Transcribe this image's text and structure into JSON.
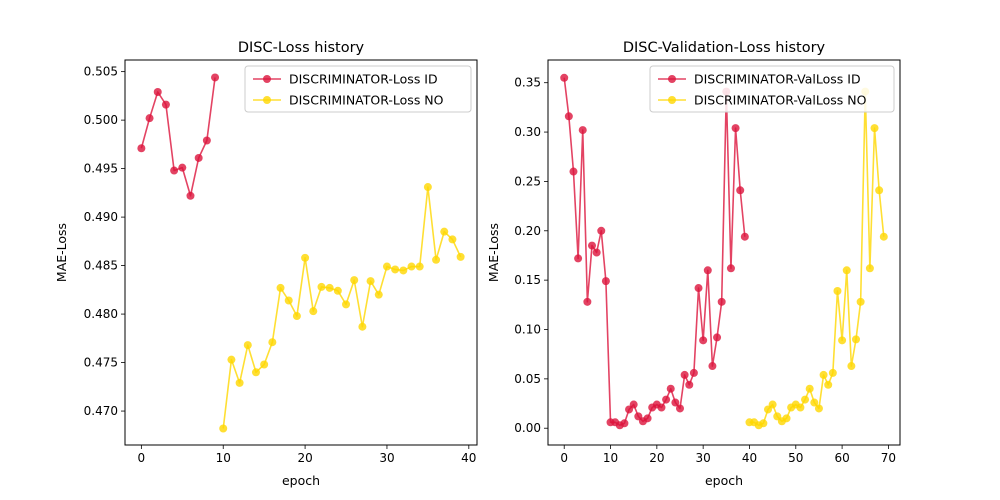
{
  "chart_data": [
    {
      "type": "line",
      "title": "DISC-Loss history",
      "xlabel": "epoch",
      "ylabel": "MAE-Loss",
      "xlim": [
        -2,
        41
      ],
      "ylim": [
        0.4665,
        0.5062
      ],
      "xticks": [
        0,
        10,
        20,
        30,
        40
      ],
      "yticks": [
        0.47,
        0.475,
        0.48,
        0.485,
        0.49,
        0.495,
        0.5,
        0.505
      ],
      "ytick_decimals": 3,
      "grid": false,
      "legend_position": "top-right",
      "series": [
        {
          "name": "DISCRIMINATOR-Loss ID",
          "color": "#dc143c",
          "x": [
            0,
            1,
            2,
            3,
            4,
            5,
            6,
            7,
            8,
            9
          ],
          "y": [
            0.4971,
            0.5002,
            0.5029,
            0.5016,
            0.4948,
            0.4951,
            0.4922,
            0.4961,
            0.4979,
            0.5044
          ]
        },
        {
          "name": "DISCRIMINATOR-Loss NO",
          "color": "#ffd700",
          "x": [
            10,
            11,
            12,
            13,
            14,
            15,
            16,
            17,
            18,
            19,
            20,
            21,
            22,
            23,
            24,
            25,
            26,
            27,
            28,
            29,
            30,
            31,
            32,
            33,
            34,
            35,
            36,
            37,
            38,
            39
          ],
          "y": [
            0.4682,
            0.4753,
            0.4729,
            0.4768,
            0.474,
            0.4748,
            0.4771,
            0.4827,
            0.4814,
            0.4798,
            0.4858,
            0.4803,
            0.4828,
            0.4827,
            0.4824,
            0.481,
            0.4835,
            0.4787,
            0.4834,
            0.482,
            0.4849,
            0.4846,
            0.4845,
            0.4849,
            0.4849,
            0.4931,
            0.4856,
            0.4885,
            0.4877,
            0.4859
          ]
        }
      ]
    },
    {
      "type": "line",
      "title": "DISC-Validation-Loss history",
      "xlabel": "epoch",
      "ylabel": "MAE-Loss",
      "xlim": [
        -3.5,
        72.5
      ],
      "ylim": [
        -0.017,
        0.373
      ],
      "xticks": [
        0,
        10,
        20,
        30,
        40,
        50,
        60,
        70
      ],
      "yticks": [
        0.0,
        0.05,
        0.1,
        0.15,
        0.2,
        0.25,
        0.3,
        0.35
      ],
      "ytick_decimals": 2,
      "grid": false,
      "legend_position": "top-right",
      "series": [
        {
          "name": "DISCRIMINATOR-ValLoss ID",
          "color": "#dc143c",
          "x": [
            0,
            1,
            2,
            3,
            4,
            5,
            6,
            7,
            8,
            9,
            10,
            11,
            12,
            13,
            14,
            15,
            16,
            17,
            18,
            19,
            20,
            21,
            22,
            23,
            24,
            25,
            26,
            27,
            28,
            29,
            30,
            31,
            32,
            33,
            34,
            35,
            36,
            37,
            38,
            39
          ],
          "y": [
            0.355,
            0.316,
            0.26,
            0.172,
            0.302,
            0.128,
            0.185,
            0.178,
            0.2,
            0.149,
            0.006,
            0.006,
            0.003,
            0.005,
            0.019,
            0.024,
            0.012,
            0.007,
            0.01,
            0.021,
            0.024,
            0.021,
            0.029,
            0.04,
            0.026,
            0.02,
            0.054,
            0.044,
            0.056,
            0.142,
            0.089,
            0.16,
            0.063,
            0.092,
            0.128,
            0.341,
            0.162,
            0.304,
            0.241,
            0.194
          ]
        },
        {
          "name": "DISCRIMINATOR-ValLoss NO",
          "color": "#ffd700",
          "x": [
            40,
            41,
            42,
            43,
            44,
            45,
            46,
            47,
            48,
            49,
            50,
            51,
            52,
            53,
            54,
            55,
            56,
            57,
            58,
            59,
            60,
            61,
            62,
            63,
            64,
            65,
            66,
            67,
            68,
            69
          ],
          "y": [
            0.006,
            0.006,
            0.003,
            0.005,
            0.019,
            0.024,
            0.012,
            0.007,
            0.01,
            0.021,
            0.024,
            0.021,
            0.029,
            0.04,
            0.026,
            0.02,
            0.054,
            0.044,
            0.056,
            0.139,
            0.089,
            0.16,
            0.063,
            0.09,
            0.128,
            0.341,
            0.162,
            0.304,
            0.241,
            0.194
          ]
        }
      ]
    }
  ]
}
